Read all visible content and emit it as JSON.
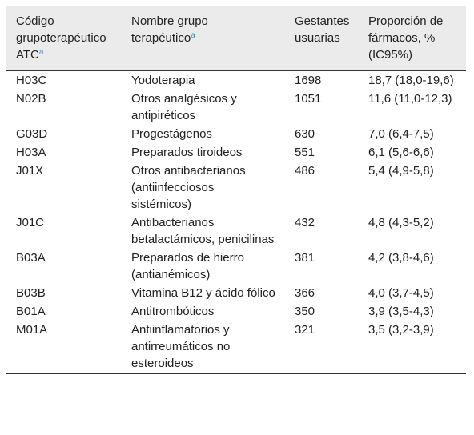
{
  "table": {
    "header": [
      {
        "text": "Código grupoterapéutico ATC",
        "note": "a"
      },
      {
        "text": "Nombre grupo terapéutico",
        "note": "a"
      },
      {
        "text": "Gestantes usuarias"
      },
      {
        "text": "Proporción de fármacos, % (IC95%)"
      }
    ],
    "rows": [
      [
        "H03C",
        "Yodoterapia",
        "1698",
        "18,7 (18,0-19,6)"
      ],
      [
        "N02B",
        "Otros analgésicos y antipiréticos",
        "1051",
        "11,6 (11,0-12,3)"
      ],
      [
        "G03D",
        "Progestágenos",
        "630",
        "7,0 (6,4-7,5)"
      ],
      [
        "H03A",
        "Preparados tiroideos",
        "551",
        "6,1 (5,6-6,6)"
      ],
      [
        "J01X",
        "Otros antibacterianos (antiinfecciosos sistémicos)",
        "486",
        "5,4 (4,9-5,8)"
      ],
      [
        "J01C",
        "Antibacterianos betalactámicos, penicilinas",
        "432",
        "4,8 (4,3-5,2)"
      ],
      [
        "B03A",
        "Preparados de hierro (antianémicos)",
        "381",
        "4,2 (3,8-4,6)"
      ],
      [
        "B03B",
        "Vitamina B12 y ácido fólico",
        "366",
        "4,0 (3,7-4,5)"
      ],
      [
        "B01A",
        "Antitrombóticos",
        "350",
        "3,9 (3,5-4,3)"
      ],
      [
        "M01A",
        "Antiinflamatorios y antirreumáticos no esteroideos",
        "321",
        "3,5 (3,2-3,9)"
      ]
    ]
  }
}
